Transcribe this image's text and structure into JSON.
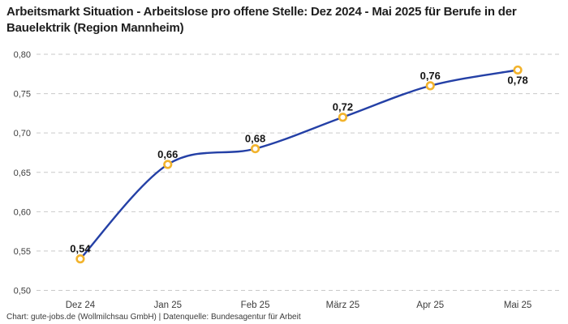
{
  "header": {
    "title": "Arbeitsmarkt Situation - Arbeitslose pro offene Stelle: Dez 2024 - Mai 2025 für Berufe in der Bauelektrik (Region Mannheim)"
  },
  "footer": {
    "source": "Chart: gute-jobs.de (Wollmilchsau GmbH) | Datenquelle: Bundesagentur für Arbeit"
  },
  "colors": {
    "line": "#2440A6",
    "marker_stroke": "#F2B32C",
    "marker_fill": "#FFFFFF",
    "grid": "#C9C9C9",
    "axis_text": "#3D3D3D",
    "data_label": "#141414",
    "title_text": "#1E1E1E",
    "background": "#FFFFFF"
  },
  "chart_data": {
    "type": "line",
    "title": "Arbeitsmarkt Situation - Arbeitslose pro offene Stelle: Dez 2024 - Mai 2025 für Berufe in der Bauelektrik (Region Mannheim)",
    "categories": [
      "Dez 24",
      "Jan 25",
      "Feb 25",
      "März 25",
      "Apr 25",
      "Mai 25"
    ],
    "values": [
      0.54,
      0.66,
      0.68,
      0.72,
      0.76,
      0.78
    ],
    "value_labels": [
      "0,54",
      "0,66",
      "0,68",
      "0,72",
      "0,76",
      "0,78"
    ],
    "label_positions": [
      "above",
      "above",
      "above",
      "above",
      "above",
      "below"
    ],
    "xlabel": "",
    "ylabel": "",
    "ylim": [
      0.5,
      0.8
    ],
    "ytick_step": 0.05,
    "ytick_labels": [
      "0,50",
      "0,55",
      "0,60",
      "0,65",
      "0,70",
      "0,75",
      "0,80"
    ],
    "grid": "horizontal-dashed",
    "legend": "none",
    "line_style": "smooth",
    "marker": "open-circle"
  }
}
